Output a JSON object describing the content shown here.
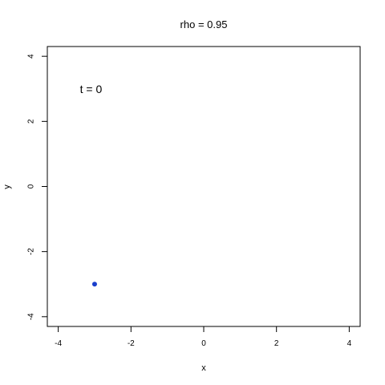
{
  "chart_data": {
    "type": "scatter",
    "title": "rho = 0.95",
    "xlabel": "x",
    "ylabel": "y",
    "xlim": [
      -4.3,
      4.3
    ],
    "ylim": [
      -4.3,
      4.3
    ],
    "xticks": [
      -4,
      -2,
      0,
      2,
      4
    ],
    "yticks": [
      -4,
      -2,
      0,
      2,
      4
    ],
    "x_tick_labels": [
      "-4",
      "-2",
      "0",
      "2",
      "4"
    ],
    "y_tick_labels": [
      "-4",
      "-2",
      "0",
      "2",
      "4"
    ],
    "annotation": {
      "text": "t = 0",
      "x": -3.1,
      "y": 3.0
    },
    "points": [
      {
        "x": -3.0,
        "y": -3.0,
        "color": "#1a3fcc"
      }
    ],
    "grid": false,
    "legend": "none"
  }
}
